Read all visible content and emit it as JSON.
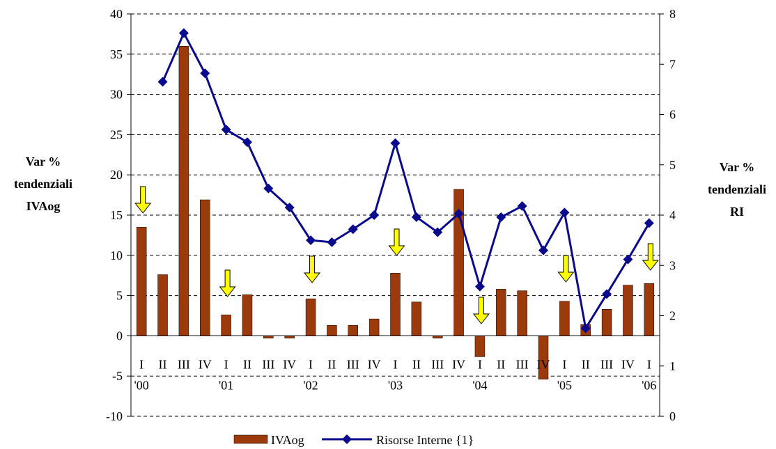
{
  "chart_data": {
    "type": "bar+line",
    "categories": [
      "I '00",
      "II",
      "III",
      "IV",
      "I '01",
      "II",
      "III",
      "IV",
      "I '02",
      "II",
      "III",
      "IV",
      "I '03",
      "II",
      "III",
      "IV",
      "I '04",
      "II",
      "III",
      "IV",
      "I '05",
      "II",
      "III",
      "IV",
      "I '06"
    ],
    "quarter_labels": [
      "I",
      "II",
      "III",
      "IV",
      "I",
      "II",
      "III",
      "IV",
      "I",
      "II",
      "III",
      "IV",
      "I",
      "II",
      "III",
      "IV",
      "I",
      "II",
      "III",
      "IV",
      "I",
      "II",
      "III",
      "IV",
      "I"
    ],
    "year_labels": [
      "'00",
      "'01",
      "'02",
      "'03",
      "'04",
      "'05",
      "'06"
    ],
    "series": [
      {
        "name": "IVAog",
        "type": "bar",
        "axis": "left",
        "color": "#9c3a0c",
        "values": [
          13.5,
          7.6,
          36.0,
          16.9,
          2.6,
          5.1,
          -0.3,
          -0.3,
          4.6,
          1.3,
          1.3,
          2.1,
          7.8,
          4.2,
          -0.3,
          18.2,
          -2.6,
          5.8,
          5.6,
          -5.4,
          4.3,
          1.4,
          3.3,
          6.3,
          6.5
        ]
      },
      {
        "name": "Risorse Interne {1}",
        "type": "line",
        "axis": "right",
        "color": "#0a0a8c",
        "values": [
          null,
          6.65,
          7.62,
          6.82,
          5.7,
          5.45,
          4.53,
          4.15,
          3.5,
          3.46,
          3.72,
          4.0,
          5.43,
          3.96,
          3.66,
          4.03,
          2.58,
          3.96,
          4.18,
          3.3,
          4.05,
          1.75,
          2.43,
          3.12,
          3.84
        ]
      }
    ],
    "arrow_positions": [
      0,
      4,
      8,
      12,
      16,
      20,
      24
    ],
    "arrow_color": "#ffff00",
    "left_axis": {
      "label_lines": [
        "Var %",
        "tendenziali",
        "IVAog"
      ],
      "ylim": [
        -10,
        40
      ],
      "ticks": [
        -10,
        -5,
        0,
        5,
        10,
        15,
        20,
        25,
        30,
        35,
        40
      ]
    },
    "right_axis": {
      "label_lines": [
        "Var %",
        "tendenziali",
        "RI"
      ],
      "ylim": [
        0,
        8
      ],
      "ticks": [
        0,
        1,
        2,
        3,
        4,
        5,
        6,
        7,
        8
      ]
    },
    "grid": "horizontal dashed",
    "legend": {
      "position": "bottom",
      "entries": [
        "IVAog",
        "Risorse Interne {1}"
      ]
    }
  }
}
